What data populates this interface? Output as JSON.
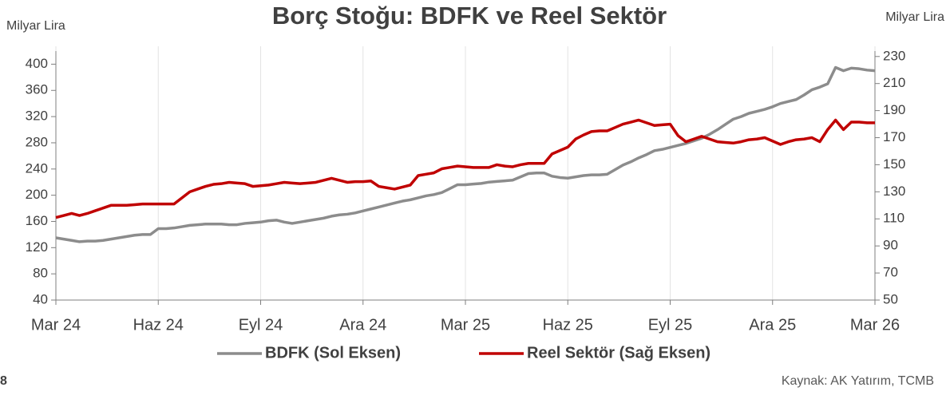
{
  "chart_data": {
    "type": "line",
    "title": "Borç Stoğu: BDFK ve Reel Sektör",
    "y_label": "Milyar Lira",
    "y2_label": "Milyar Lira",
    "source": "Kaynak: AK Yatırım,  TCMB",
    "page_number": "8",
    "grid": "x",
    "legend": "bottom",
    "categories": [
      "Mar 24",
      null,
      null,
      null,
      null,
      null,
      null,
      null,
      null,
      null,
      null,
      null,
      null,
      "Haz 24",
      null,
      null,
      null,
      null,
      null,
      null,
      null,
      null,
      null,
      null,
      null,
      null,
      "Eyl 24",
      null,
      null,
      null,
      null,
      null,
      null,
      null,
      null,
      null,
      null,
      null,
      null,
      "Ara 24",
      null,
      null,
      null,
      null,
      null,
      null,
      null,
      null,
      null,
      null,
      null,
      null,
      "Mar 25",
      null,
      null,
      null,
      null,
      null,
      null,
      null,
      null,
      null,
      null,
      null,
      null,
      "Haz 25",
      null,
      null,
      null,
      null,
      null,
      null,
      null,
      null,
      null,
      null,
      null,
      null,
      "Eyl 25",
      null,
      null,
      null,
      null,
      null,
      null,
      null,
      null,
      null,
      null,
      null,
      null,
      "Ara 25",
      null,
      null,
      null,
      null,
      null,
      null,
      null,
      null,
      null,
      null,
      null,
      null,
      "Mar 26"
    ],
    "ylim": [
      40,
      420
    ],
    "yticks": [
      40,
      80,
      120,
      160,
      200,
      240,
      280,
      320,
      360,
      400
    ],
    "y2lim": [
      50,
      234
    ],
    "y2ticks": [
      50,
      70,
      90,
      110,
      130,
      150,
      170,
      190,
      210,
      230
    ],
    "series": [
      {
        "name": "BDFK (Sol Eksen)",
        "color": "#8c8c8c",
        "axis": "y",
        "values": [
          135,
          133,
          131,
          129,
          130,
          130,
          131,
          133,
          135,
          137,
          139,
          140,
          140,
          149,
          149,
          150,
          152,
          154,
          155,
          156,
          156,
          156,
          155,
          155,
          157,
          158,
          159,
          161,
          162,
          159,
          157,
          159,
          161,
          163,
          165,
          168,
          170,
          171,
          173,
          176,
          179,
          182,
          185,
          188,
          191,
          193,
          196,
          199,
          201,
          204,
          210,
          216,
          216,
          217,
          218,
          220,
          221,
          222,
          223,
          228,
          233,
          234,
          234,
          229,
          227,
          226,
          228,
          230,
          231,
          231,
          232,
          239,
          246,
          251,
          257,
          262,
          268,
          270,
          273,
          276,
          279,
          283,
          287,
          293,
          300,
          308,
          316,
          320,
          325,
          328,
          331,
          335,
          340,
          343,
          346,
          353,
          361,
          365,
          370,
          395,
          390,
          394,
          393,
          391,
          390
        ]
      },
      {
        "name": "Reel Sektör (Sağ Eksen)",
        "color": "#c00000",
        "axis": "y2",
        "values": [
          111,
          112.5,
          114,
          112.5,
          114,
          116,
          118,
          120,
          120,
          120,
          120.5,
          121,
          121,
          121,
          121,
          121,
          125.5,
          130,
          132,
          134,
          135.5,
          136,
          137,
          136.5,
          136,
          134,
          134.5,
          135,
          136,
          137,
          136.5,
          136,
          136.5,
          137,
          138.5,
          140,
          138.5,
          137,
          137.5,
          137.5,
          138,
          134,
          133,
          132,
          133.5,
          135,
          142,
          143,
          144,
          147,
          148,
          149,
          148.5,
          148,
          148,
          148,
          150,
          149,
          148.5,
          150,
          151,
          151,
          151,
          158,
          160.5,
          163,
          169,
          172,
          174.5,
          175,
          175,
          177.5,
          180,
          181.5,
          183,
          181,
          179,
          179.5,
          180,
          171.5,
          167,
          169,
          171,
          169,
          167,
          166.5,
          166,
          167,
          168.5,
          169,
          170,
          167.5,
          165,
          167,
          168.5,
          169,
          170,
          167,
          176,
          183,
          176,
          181.5,
          181.5,
          181,
          181
        ]
      }
    ]
  }
}
